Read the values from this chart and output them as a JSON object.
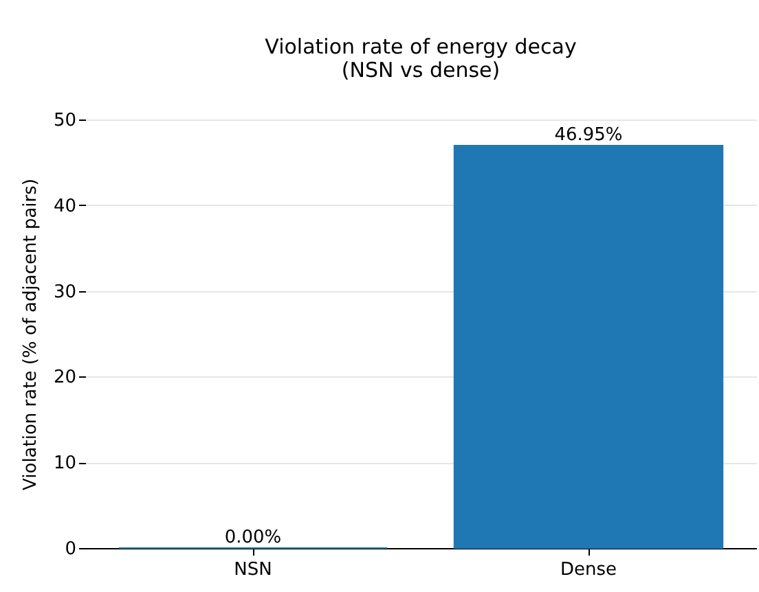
{
  "chart_data": {
    "type": "bar",
    "title": [
      "Violation rate of energy decay",
      "(NSN vs dense)"
    ],
    "ylabel": "Violation rate (% of adjacent pairs)",
    "categories": [
      "NSN",
      "Dense"
    ],
    "values": [
      0,
      46.95
    ],
    "color": "#1f77b4",
    "value_labels": [
      "0.00%",
      "46.95%"
    ],
    "ylim": [
      0,
      50
    ],
    "yticks": [
      0,
      10,
      20,
      30,
      40,
      50
    ],
    "grid": "y"
  }
}
